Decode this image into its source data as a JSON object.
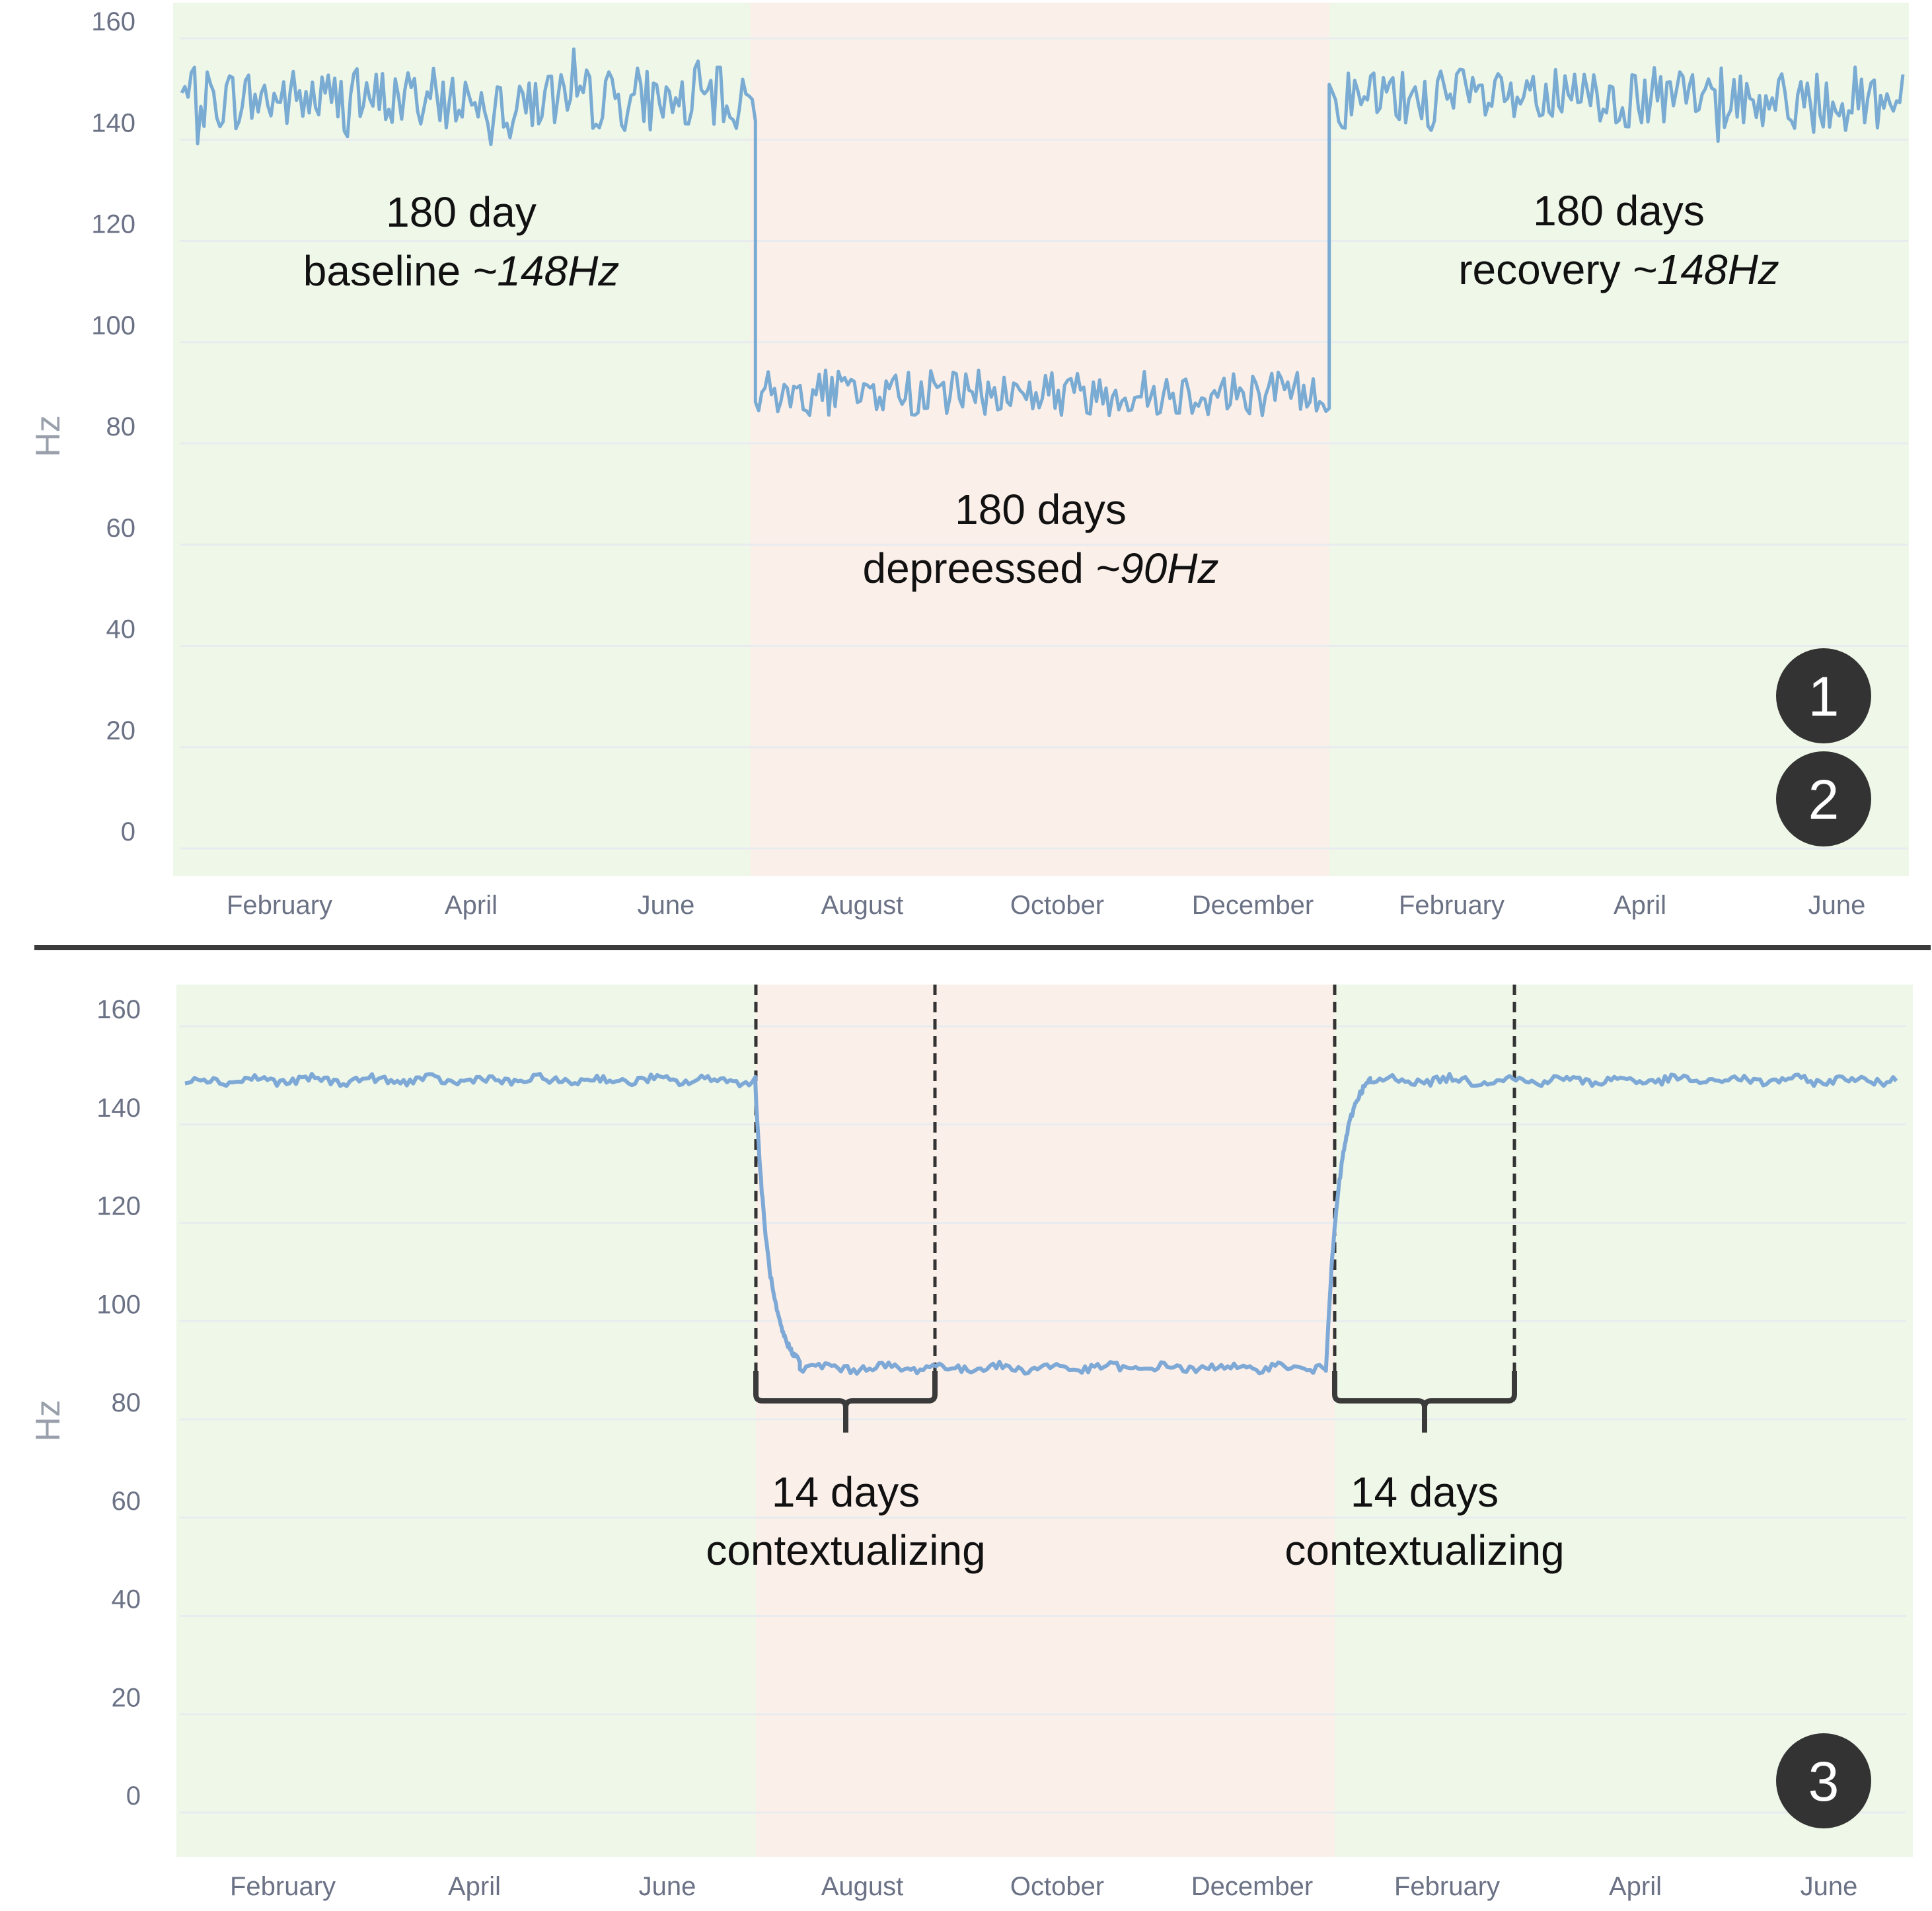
{
  "colors": {
    "baseline_band": "#eef7e8",
    "depressed_band": "#fbefe9",
    "series_top": "#79abd3",
    "series_bottom": "#7ea9d6",
    "grid": "#e8ecef",
    "divider": "#3b3b3b",
    "badge": "#333333",
    "bracket": "#3a3a3a",
    "dashed": "#333333"
  },
  "badges": [
    "1",
    "2",
    "3"
  ],
  "chart_data": [
    {
      "type": "line",
      "ylabel": "Hz",
      "xlabel": "",
      "ylim": [
        0,
        160
      ],
      "yticks": [
        "0",
        "20",
        "40",
        "60",
        "80",
        "100",
        "120",
        "140",
        "160"
      ],
      "x_tick_labels": [
        "February",
        "April",
        "June",
        "August",
        "October",
        "December",
        "February",
        "April",
        "June"
      ],
      "x_range_days": [
        0,
        540
      ],
      "grid": "horizontal",
      "bands": [
        {
          "from_day": 0,
          "to_day": 180,
          "kind": "baseline"
        },
        {
          "from_day": 180,
          "to_day": 360,
          "kind": "depressed"
        },
        {
          "from_day": 360,
          "to_day": 540,
          "kind": "recovery"
        }
      ],
      "segments": [
        {
          "from_day": 0,
          "to_day": 180,
          "level": 148,
          "noise": 7
        },
        {
          "from_day": 180,
          "to_day": 360,
          "level": 90,
          "noise": 5
        },
        {
          "from_day": 360,
          "to_day": 540,
          "level": 148,
          "noise": 7
        }
      ],
      "annotations": [
        {
          "line1": "180 day",
          "line2_plain": "baseline ",
          "line2_italic": "~148Hz"
        },
        {
          "line1": "180 days",
          "line2_plain": "depreessed ",
          "line2_italic": "~90Hz"
        },
        {
          "line1": "180 days",
          "line2_plain": "recovery ",
          "line2_italic": "~148Hz"
        }
      ]
    },
    {
      "type": "line",
      "ylabel": "Hz",
      "xlabel": "",
      "ylim": [
        0,
        160
      ],
      "yticks": [
        "0",
        "20",
        "40",
        "60",
        "80",
        "100",
        "120",
        "140",
        "160"
      ],
      "x_tick_labels": [
        "February",
        "April",
        "June",
        "August",
        "October",
        "December",
        "February",
        "April",
        "June"
      ],
      "x_range_days": [
        0,
        540
      ],
      "grid": "horizontal",
      "bands": [
        {
          "from_day": 0,
          "to_day": 180,
          "kind": "baseline"
        },
        {
          "from_day": 180,
          "to_day": 360,
          "kind": "depressed"
        },
        {
          "from_day": 360,
          "to_day": 540,
          "kind": "recovery"
        }
      ],
      "transitions": [
        {
          "from_day": 180,
          "to_day": 194,
          "from_value": 148,
          "to_value": 92
        },
        {
          "from_day": 360,
          "to_day": 374,
          "from_value": 90,
          "to_value": 149
        }
      ],
      "plateaus": [
        {
          "from_day": 0,
          "to_day": 180,
          "level": 149
        },
        {
          "from_day": 194,
          "to_day": 360,
          "level": 90.5
        },
        {
          "from_day": 374,
          "to_day": 540,
          "level": 149
        }
      ],
      "annotations": [
        {
          "line1": "14 days",
          "line2": "contextualizing"
        },
        {
          "line1": "14 days",
          "line2": "contextualizing"
        }
      ]
    }
  ]
}
